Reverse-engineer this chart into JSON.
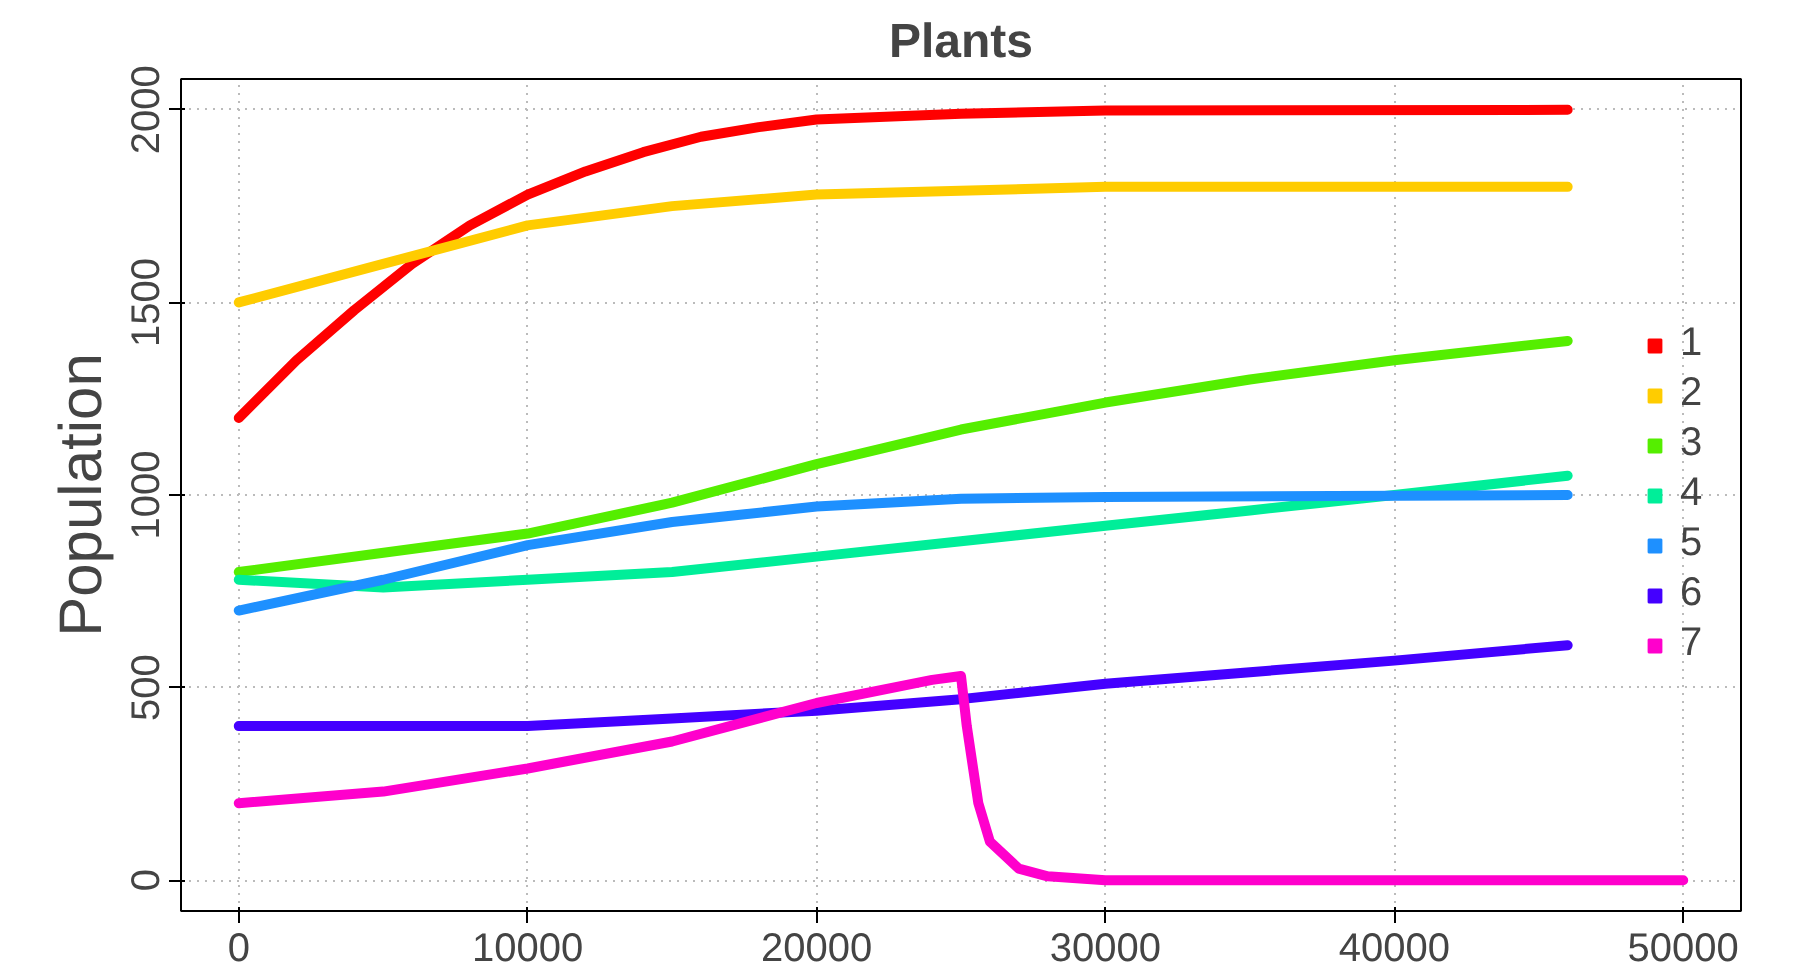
{
  "chart_data": {
    "type": "line",
    "title": "Plants",
    "ylabel": "Population",
    "xlim": [
      -2000,
      52000
    ],
    "ylim": [
      -80,
      2080
    ],
    "xticks": [
      0,
      10000,
      20000,
      30000,
      40000,
      50000
    ],
    "yticks": [
      0,
      500,
      1000,
      1500,
      2000
    ],
    "grid": true,
    "legend": "right",
    "line_style": "solid",
    "series": [
      {
        "name": "1",
        "color": "#ff0000",
        "x": [
          0,
          2000,
          4000,
          6000,
          8000,
          10000,
          12000,
          14000,
          16000,
          18000,
          20000,
          25000,
          30000,
          46000
        ],
        "values": [
          1200,
          1350,
          1480,
          1600,
          1700,
          1780,
          1840,
          1890,
          1930,
          1955,
          1975,
          1990,
          1998,
          2000
        ]
      },
      {
        "name": "2",
        "color": "#ffcc00",
        "x": [
          0,
          5000,
          10000,
          15000,
          20000,
          30000,
          46000
        ],
        "values": [
          1500,
          1600,
          1700,
          1750,
          1780,
          1800,
          1800
        ]
      },
      {
        "name": "3",
        "color": "#55ee00",
        "x": [
          0,
          10000,
          15000,
          20000,
          25000,
          30000,
          35000,
          40000,
          46000
        ],
        "values": [
          800,
          900,
          980,
          1080,
          1170,
          1240,
          1300,
          1350,
          1400
        ]
      },
      {
        "name": "4",
        "color": "#00ee99",
        "x": [
          0,
          5000,
          10000,
          15000,
          20000,
          25000,
          30000,
          35000,
          40000,
          46000
        ],
        "values": [
          780,
          760,
          780,
          800,
          840,
          880,
          920,
          960,
          1000,
          1050
        ]
      },
      {
        "name": "5",
        "color": "#1e90ff",
        "x": [
          0,
          5000,
          10000,
          15000,
          20000,
          25000,
          30000,
          46000
        ],
        "values": [
          700,
          780,
          870,
          930,
          970,
          990,
          995,
          1000
        ]
      },
      {
        "name": "6",
        "color": "#4400ff",
        "x": [
          0,
          10000,
          15000,
          20000,
          25000,
          30000,
          35000,
          40000,
          46000
        ],
        "values": [
          400,
          400,
          420,
          440,
          470,
          510,
          540,
          570,
          610
        ]
      },
      {
        "name": "7",
        "color": "#ff00cc",
        "x": [
          0,
          5000,
          10000,
          15000,
          20000,
          24000,
          25000,
          25200,
          25600,
          26000,
          27000,
          28000,
          30000,
          50000
        ],
        "values": [
          200,
          230,
          290,
          360,
          460,
          520,
          530,
          400,
          200,
          100,
          30,
          10,
          0,
          0
        ]
      }
    ]
  }
}
